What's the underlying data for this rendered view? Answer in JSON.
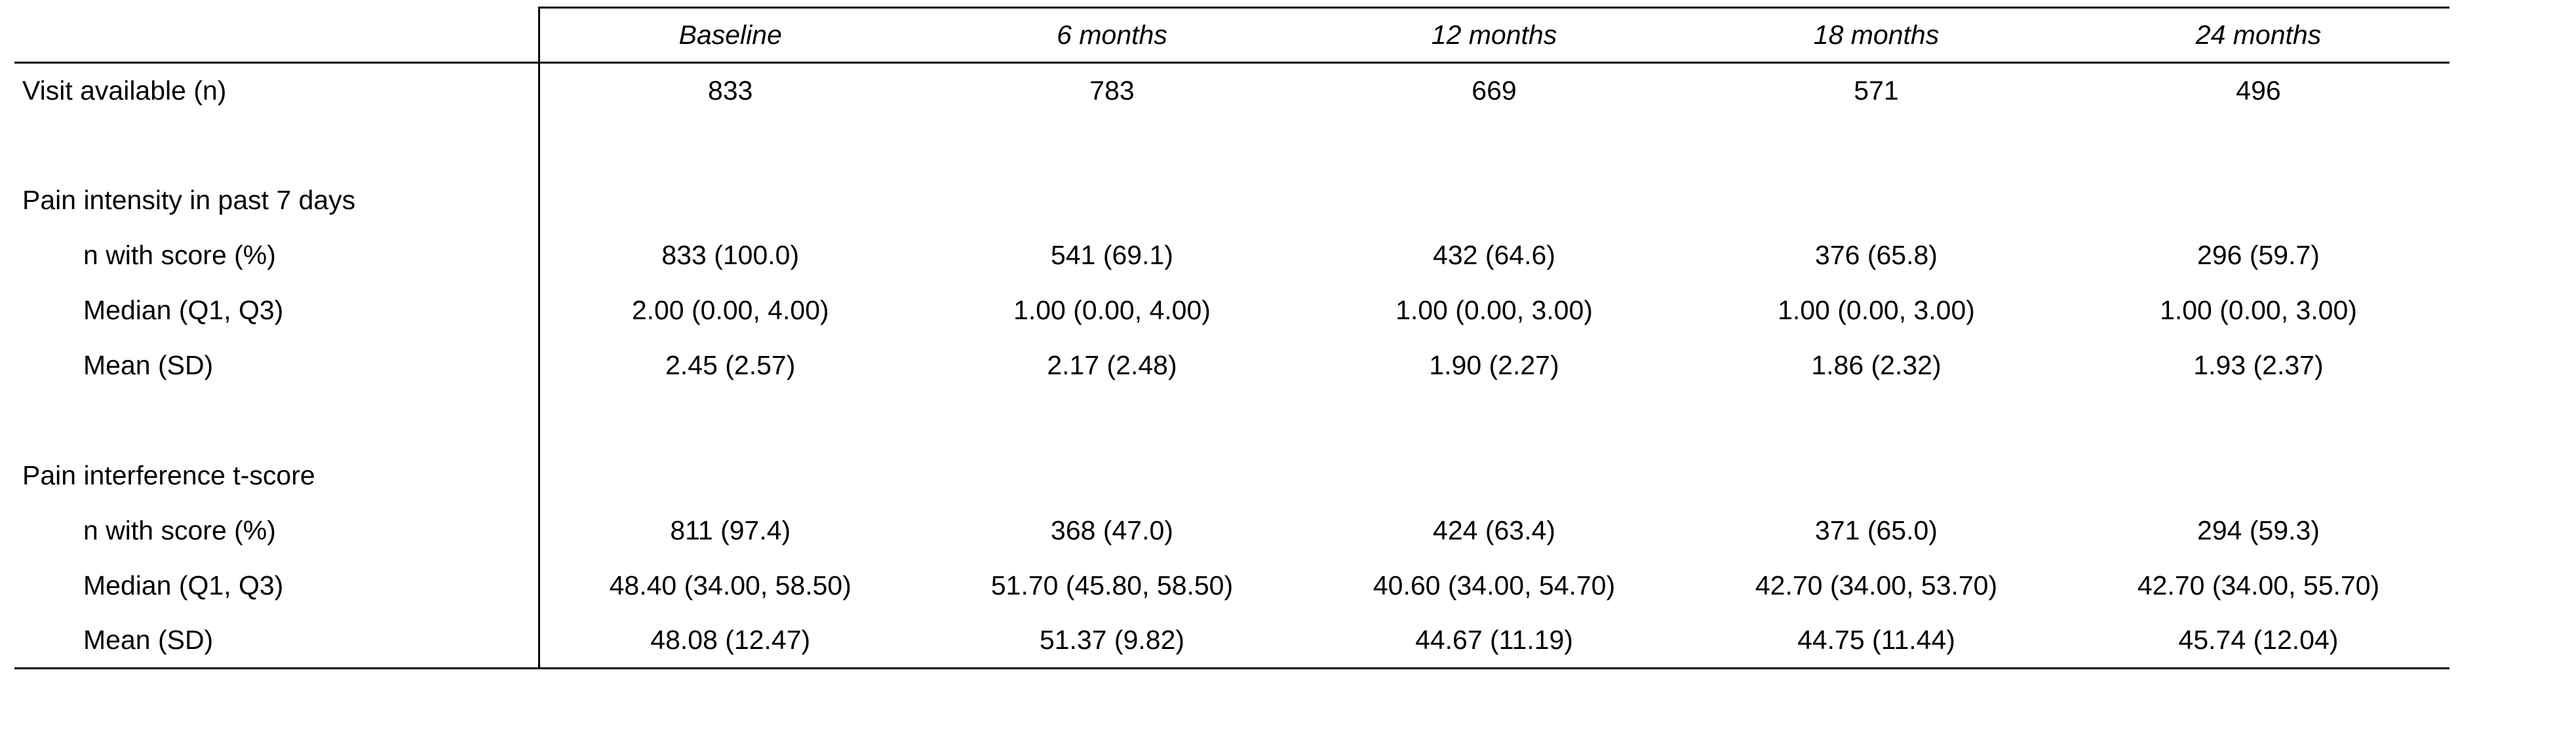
{
  "table": {
    "columns": [
      "",
      "Baseline",
      "6 months",
      "12 months",
      "18 months",
      "24 months"
    ],
    "rows": [
      {
        "type": "data",
        "indent": false,
        "label": "Visit available (n)",
        "values": [
          "833",
          "783",
          "669",
          "571",
          "496"
        ]
      },
      {
        "type": "spacer",
        "indent": false,
        "label": "",
        "values": [
          "",
          "",
          "",
          "",
          ""
        ]
      },
      {
        "type": "section",
        "indent": false,
        "label": "Pain intensity in past 7 days",
        "values": [
          "",
          "",
          "",
          "",
          ""
        ]
      },
      {
        "type": "data",
        "indent": true,
        "label": "n with score (%)",
        "values": [
          "833 (100.0)",
          "541 (69.1)",
          "432 (64.6)",
          "376 (65.8)",
          "296 (59.7)"
        ]
      },
      {
        "type": "data",
        "indent": true,
        "label": "Median (Q1, Q3)",
        "values": [
          "2.00 (0.00, 4.00)",
          "1.00 (0.00, 4.00)",
          "1.00 (0.00, 3.00)",
          "1.00 (0.00, 3.00)",
          "1.00 (0.00, 3.00)"
        ]
      },
      {
        "type": "data",
        "indent": true,
        "label": "Mean (SD)",
        "values": [
          "2.45 (2.57)",
          "2.17 (2.48)",
          "1.90 (2.27)",
          "1.86 (2.32)",
          "1.93 (2.37)"
        ]
      },
      {
        "type": "spacer",
        "indent": false,
        "label": "",
        "values": [
          "",
          "",
          "",
          "",
          ""
        ]
      },
      {
        "type": "section",
        "indent": false,
        "label": "Pain interference t-score",
        "values": [
          "",
          "",
          "",
          "",
          ""
        ]
      },
      {
        "type": "data",
        "indent": true,
        "label": "n with score (%)",
        "values": [
          "811 (97.4)",
          "368 (47.0)",
          "424 (63.4)",
          "371 (65.0)",
          "294 (59.3)"
        ]
      },
      {
        "type": "data",
        "indent": true,
        "label": "Median (Q1, Q3)",
        "values": [
          "48.40 (34.00, 58.50)",
          "51.70 (45.80, 58.50)",
          "40.60 (34.00, 54.70)",
          "42.70 (34.00, 53.70)",
          "42.70 (34.00, 55.70)"
        ]
      },
      {
        "type": "data",
        "indent": true,
        "label": "Mean (SD)",
        "values": [
          "48.08 (12.47)",
          "51.37 (9.82)",
          "44.67 (11.19)",
          "44.75 (11.44)",
          "45.74 (12.04)"
        ]
      }
    ]
  }
}
